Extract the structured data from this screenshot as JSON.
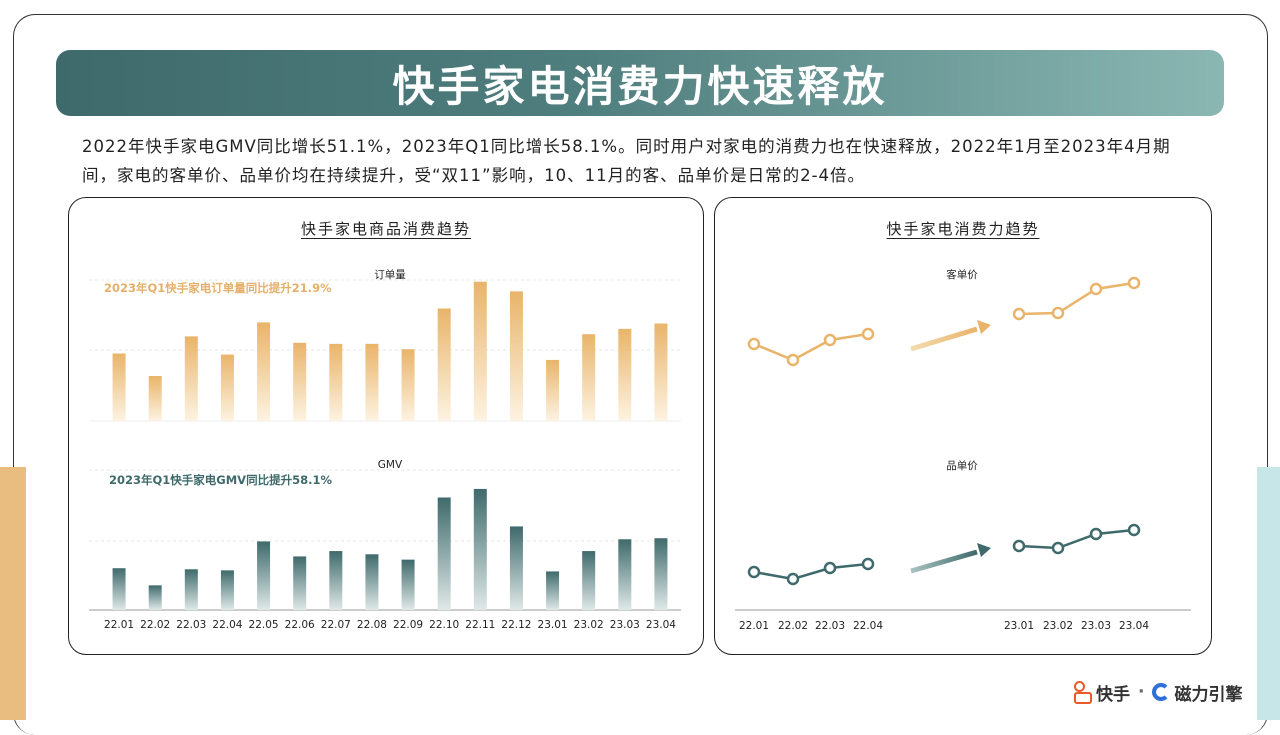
{
  "header": {
    "title": "快手家电消费力快速释放"
  },
  "intro": "2022年快手家电GMV同比增长51.1%，2023年Q1同比增长58.1%。同时用户对家电的消费力也在快速释放，2022年1月至2023年4月期间，家电的客单价、品单价均在持续提升，受“双11”影响，10、11月的客、品单价是日常的2-4倍。",
  "left_panel": {
    "title": "快手家电商品消费趋势"
  },
  "right_panel": {
    "title": "快手家电消费力趋势"
  },
  "footer": {
    "brand1": "快手",
    "sep": "·",
    "brand2": "磁力引擎"
  },
  "colors": {
    "gold": "#e9b46a",
    "teal": "#3f6a6b",
    "title_start": "#3f6a6b",
    "title_end": "#8ab7b2"
  },
  "chart_data": [
    {
      "type": "bar",
      "title": "订单量",
      "annotation": "2023年Q1快手家电订单量同比提升21.9%",
      "categories": [
        "22.01",
        "22.02",
        "22.03",
        "22.04",
        "22.05",
        "22.06",
        "22.07",
        "22.08",
        "22.09",
        "22.10",
        "22.11",
        "22.12",
        "23.01",
        "23.02",
        "23.03",
        "23.04"
      ],
      "values": [
        63,
        42,
        79,
        62,
        92,
        73,
        72,
        72,
        67,
        105,
        130,
        121,
        57,
        81,
        86,
        91
      ],
      "ylim": [
        0,
        140
      ]
    },
    {
      "type": "bar",
      "title": "GMV",
      "annotation": "2023年Q1快手家电GMV同比提升58.1%",
      "categories": [
        "22.01",
        "22.02",
        "22.03",
        "22.04",
        "22.05",
        "22.06",
        "22.07",
        "22.08",
        "22.09",
        "22.10",
        "22.11",
        "22.12",
        "23.01",
        "23.02",
        "23.03",
        "23.04"
      ],
      "values": [
        39,
        23,
        38,
        37,
        64,
        50,
        55,
        52,
        47,
        105,
        113,
        78,
        36,
        55,
        66,
        67
      ],
      "ylim": [
        0,
        140
      ]
    },
    {
      "type": "line",
      "title": "客单价",
      "segments": [
        {
          "x": [
            "22.01",
            "22.02",
            "22.03",
            "22.04"
          ],
          "values": [
            50,
            34,
            54,
            60
          ]
        },
        {
          "x": [
            "23.01",
            "23.02",
            "23.03",
            "23.04"
          ],
          "values": [
            80,
            81,
            105,
            111
          ]
        }
      ],
      "ylim": [
        0,
        150
      ]
    },
    {
      "type": "line",
      "title": "品单价",
      "segments": [
        {
          "x": [
            "22.01",
            "22.02",
            "22.03",
            "22.04"
          ],
          "values": [
            44,
            37,
            48,
            52
          ]
        },
        {
          "x": [
            "23.01",
            "23.02",
            "23.03",
            "23.04"
          ],
          "values": [
            70,
            68,
            82,
            86
          ]
        }
      ],
      "ylim": [
        0,
        150
      ]
    }
  ]
}
